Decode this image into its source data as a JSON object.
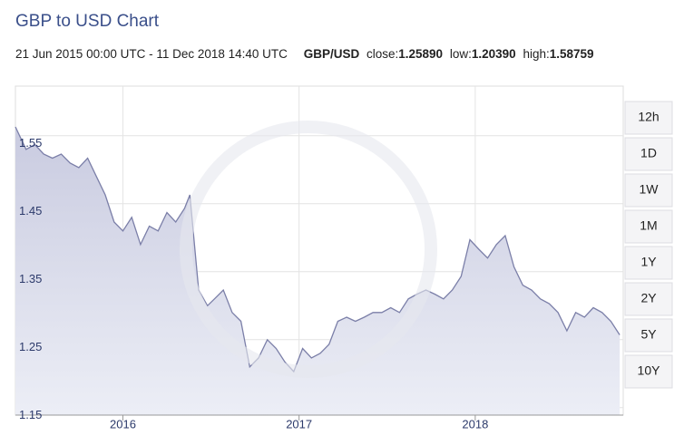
{
  "chart_data": {
    "type": "area",
    "title": "GBP to USD Chart",
    "date_range": "21 Jun 2015 00:00 UTC - 11 Dec 2018 14:40 UTC",
    "pair": "GBP/USD",
    "close_label": "close:",
    "close": "1.25890",
    "low_label": "low:",
    "low": "1.20390",
    "high_label": "high:",
    "high": "1.58759",
    "x": [
      2015.39,
      2015.45,
      2015.5,
      2015.55,
      2015.6,
      2015.65,
      2015.7,
      2015.75,
      2015.8,
      2015.85,
      2015.9,
      2015.95,
      2016.0,
      2016.05,
      2016.1,
      2016.15,
      2016.2,
      2016.25,
      2016.3,
      2016.35,
      2016.38,
      2016.43,
      2016.48,
      2016.52,
      2016.57,
      2016.62,
      2016.67,
      2016.72,
      2016.77,
      2016.82,
      2016.87,
      2016.92,
      2016.97,
      2017.02,
      2017.07,
      2017.12,
      2017.17,
      2017.22,
      2017.27,
      2017.32,
      2017.37,
      2017.42,
      2017.47,
      2017.52,
      2017.57,
      2017.62,
      2017.67,
      2017.72,
      2017.77,
      2017.82,
      2017.87,
      2017.92,
      2017.97,
      2018.02,
      2018.07,
      2018.12,
      2018.17,
      2018.22,
      2018.27,
      2018.32,
      2018.37,
      2018.42,
      2018.47,
      2018.52,
      2018.57,
      2018.62,
      2018.67,
      2018.72,
      2018.77,
      2018.82
    ],
    "series": [
      {
        "name": "GBP/USD",
        "color": "#7b7fa8",
        "values": [
          1.563,
          1.53,
          1.537,
          1.523,
          1.517,
          1.523,
          1.51,
          1.503,
          1.517,
          1.49,
          1.463,
          1.423,
          1.41,
          1.43,
          1.39,
          1.417,
          1.41,
          1.437,
          1.423,
          1.443,
          1.463,
          1.323,
          1.3,
          1.31,
          1.323,
          1.29,
          1.277,
          1.21,
          1.223,
          1.25,
          1.237,
          1.217,
          1.203,
          1.237,
          1.223,
          1.23,
          1.243,
          1.277,
          1.283,
          1.277,
          1.283,
          1.29,
          1.29,
          1.297,
          1.29,
          1.31,
          1.317,
          1.323,
          1.317,
          1.31,
          1.323,
          1.343,
          1.397,
          1.383,
          1.37,
          1.39,
          1.403,
          1.357,
          1.33,
          1.323,
          1.31,
          1.303,
          1.29,
          1.263,
          1.29,
          1.283,
          1.297,
          1.29,
          1.277,
          1.257
        ]
      }
    ],
    "xlim": [
      2015.39,
      2018.84
    ],
    "xticks": [
      2016,
      2017,
      2018
    ],
    "ylim": [
      1.139,
      1.623
    ],
    "yticks": [
      1.15,
      1.25,
      1.35,
      1.45,
      1.55
    ],
    "grid": true
  },
  "controls": {
    "ranges": [
      "12h",
      "1D",
      "1W",
      "1M",
      "1Y",
      "2Y",
      "5Y",
      "10Y"
    ]
  }
}
